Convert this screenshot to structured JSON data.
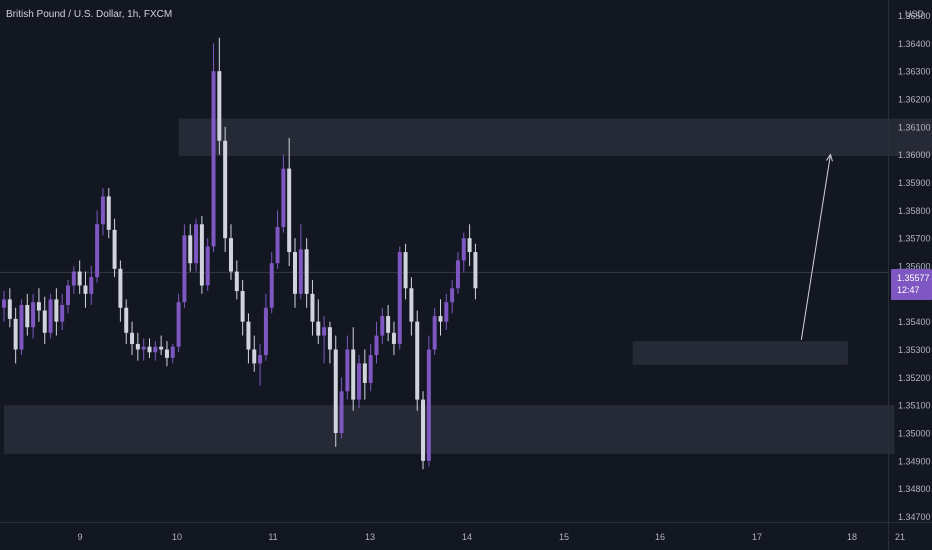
{
  "header": {
    "symbol_title": "British Pound / U.S. Dollar, 1h, FXCM",
    "currency": "USD"
  },
  "last_price": {
    "value": "1.35577",
    "countdown": "12:47",
    "color": "#7e57c2"
  },
  "colors": {
    "background": "#131722",
    "bull": "#7e57c2",
    "bear": "#d1d4dc",
    "zone": "#2a2e39",
    "axis_text": "#b2b5be"
  },
  "chart_data": {
    "type": "candlestick",
    "y_axis": {
      "ticks": [
        "1.36500",
        "1.36400",
        "1.36300",
        "1.36200",
        "1.36100",
        "1.36000",
        "1.35900",
        "1.35800",
        "1.35700",
        "1.35600",
        "1.35500",
        "1.35400",
        "1.35300",
        "1.35200",
        "1.35100",
        "1.35000",
        "1.34900",
        "1.34800",
        "1.34700"
      ],
      "ylim": [
        1.3464,
        1.3655
      ]
    },
    "x_axis": {
      "ticks": [
        "9",
        "10",
        "11",
        "13",
        "14",
        "15",
        "16",
        "17",
        "18",
        "21"
      ]
    },
    "zones": [
      {
        "x_from": 30,
        "x_to": 161,
        "y_from": 1.35995,
        "y_to": 1.3613
      },
      {
        "x_from": 108,
        "x_to": 145,
        "y_from": 1.35245,
        "y_to": 1.3533
      },
      {
        "x_from": 0,
        "x_to": 153,
        "y_from": 1.34925,
        "y_to": 1.351
      }
    ],
    "arrow": {
      "x_from": 137,
      "y_from": 1.35335,
      "x_to": 142,
      "y_to": 1.36
    },
    "candles": [
      [
        1.3545,
        1.3551,
        1.354,
        1.3548
      ],
      [
        1.3548,
        1.3552,
        1.3538,
        1.3541
      ],
      [
        1.3541,
        1.3545,
        1.3525,
        1.353
      ],
      [
        1.353,
        1.3548,
        1.3528,
        1.3546
      ],
      [
        1.3546,
        1.355,
        1.3535,
        1.3538
      ],
      [
        1.3538,
        1.355,
        1.3534,
        1.3547
      ],
      [
        1.3547,
        1.3552,
        1.354,
        1.3544
      ],
      [
        1.3544,
        1.3549,
        1.3532,
        1.3536
      ],
      [
        1.3536,
        1.355,
        1.3534,
        1.3548
      ],
      [
        1.3548,
        1.3552,
        1.3535,
        1.354
      ],
      [
        1.354,
        1.355,
        1.3537,
        1.3546
      ],
      [
        1.3546,
        1.3555,
        1.3543,
        1.3553
      ],
      [
        1.3553,
        1.356,
        1.355,
        1.3558
      ],
      [
        1.3558,
        1.3562,
        1.355,
        1.3553
      ],
      [
        1.3553,
        1.3558,
        1.3545,
        1.355
      ],
      [
        1.355,
        1.356,
        1.3546,
        1.3556
      ],
      [
        1.3556,
        1.358,
        1.3554,
        1.3575
      ],
      [
        1.3575,
        1.3588,
        1.3571,
        1.3585
      ],
      [
        1.3585,
        1.3588,
        1.357,
        1.3573
      ],
      [
        1.3573,
        1.3577,
        1.3556,
        1.3559
      ],
      [
        1.3559,
        1.3562,
        1.354,
        1.3545
      ],
      [
        1.3545,
        1.3548,
        1.3532,
        1.3536
      ],
      [
        1.3536,
        1.354,
        1.3528,
        1.3532
      ],
      [
        1.3532,
        1.3536,
        1.3526,
        1.353
      ],
      [
        1.353,
        1.3534,
        1.3526,
        1.3531
      ],
      [
        1.3531,
        1.3534,
        1.3527,
        1.3529
      ],
      [
        1.3529,
        1.3533,
        1.3526,
        1.3531
      ],
      [
        1.3531,
        1.3535,
        1.3528,
        1.353
      ],
      [
        1.353,
        1.3533,
        1.3524,
        1.3527
      ],
      [
        1.3527,
        1.3532,
        1.3525,
        1.3531
      ],
      [
        1.3531,
        1.355,
        1.3529,
        1.3547
      ],
      [
        1.3547,
        1.3575,
        1.3545,
        1.3571
      ],
      [
        1.3571,
        1.3575,
        1.3558,
        1.3561
      ],
      [
        1.3561,
        1.3577,
        1.3558,
        1.3575
      ],
      [
        1.3575,
        1.3578,
        1.355,
        1.3553
      ],
      [
        1.3553,
        1.357,
        1.3551,
        1.3567
      ],
      [
        1.3567,
        1.364,
        1.3565,
        1.363
      ],
      [
        1.363,
        1.3642,
        1.36,
        1.3605
      ],
      [
        1.3605,
        1.361,
        1.3565,
        1.357
      ],
      [
        1.357,
        1.3575,
        1.3555,
        1.3558
      ],
      [
        1.3558,
        1.3562,
        1.3548,
        1.3551
      ],
      [
        1.3551,
        1.3555,
        1.3535,
        1.354
      ],
      [
        1.354,
        1.3543,
        1.3525,
        1.353
      ],
      [
        1.353,
        1.3535,
        1.3522,
        1.3525
      ],
      [
        1.3525,
        1.3532,
        1.3517,
        1.3528
      ],
      [
        1.3528,
        1.355,
        1.3526,
        1.3545
      ],
      [
        1.3545,
        1.3565,
        1.3543,
        1.3561
      ],
      [
        1.3561,
        1.358,
        1.3559,
        1.3574
      ],
      [
        1.3574,
        1.36,
        1.3572,
        1.3595
      ],
      [
        1.3595,
        1.3606,
        1.356,
        1.3565
      ],
      [
        1.3565,
        1.357,
        1.3545,
        1.355
      ],
      [
        1.355,
        1.3575,
        1.3548,
        1.3566
      ],
      [
        1.3566,
        1.357,
        1.3545,
        1.355
      ],
      [
        1.355,
        1.3555,
        1.3535,
        1.354
      ],
      [
        1.354,
        1.3548,
        1.3532,
        1.3535
      ],
      [
        1.3535,
        1.3542,
        1.3525,
        1.3538
      ],
      [
        1.3538,
        1.354,
        1.3525,
        1.353
      ],
      [
        1.353,
        1.3535,
        1.3495,
        1.35
      ],
      [
        1.35,
        1.352,
        1.3498,
        1.3515
      ],
      [
        1.3515,
        1.3535,
        1.3512,
        1.353
      ],
      [
        1.353,
        1.3538,
        1.3508,
        1.3512
      ],
      [
        1.3512,
        1.3528,
        1.3509,
        1.3525
      ],
      [
        1.3525,
        1.353,
        1.3512,
        1.3518
      ],
      [
        1.3518,
        1.3532,
        1.3515,
        1.3528
      ],
      [
        1.3528,
        1.354,
        1.3525,
        1.3535
      ],
      [
        1.3535,
        1.3545,
        1.3532,
        1.3542
      ],
      [
        1.3542,
        1.3546,
        1.3533,
        1.3536
      ],
      [
        1.3536,
        1.354,
        1.3528,
        1.3532
      ],
      [
        1.3532,
        1.3567,
        1.353,
        1.3565
      ],
      [
        1.3565,
        1.3568,
        1.3548,
        1.3552
      ],
      [
        1.3552,
        1.3556,
        1.3535,
        1.354
      ],
      [
        1.354,
        1.3544,
        1.3508,
        1.3512
      ],
      [
        1.3512,
        1.3515,
        1.3487,
        1.349
      ],
      [
        1.349,
        1.3535,
        1.3488,
        1.353
      ],
      [
        1.353,
        1.3545,
        1.3528,
        1.3542
      ],
      [
        1.3542,
        1.3548,
        1.3535,
        1.354
      ],
      [
        1.354,
        1.355,
        1.3537,
        1.3547
      ],
      [
        1.3547,
        1.3555,
        1.3543,
        1.3552
      ],
      [
        1.3552,
        1.3565,
        1.355,
        1.3562
      ],
      [
        1.3562,
        1.3572,
        1.3558,
        1.357
      ],
      [
        1.357,
        1.3575,
        1.356,
        1.3565
      ],
      [
        1.3565,
        1.3568,
        1.3548,
        1.3552
      ]
    ]
  }
}
